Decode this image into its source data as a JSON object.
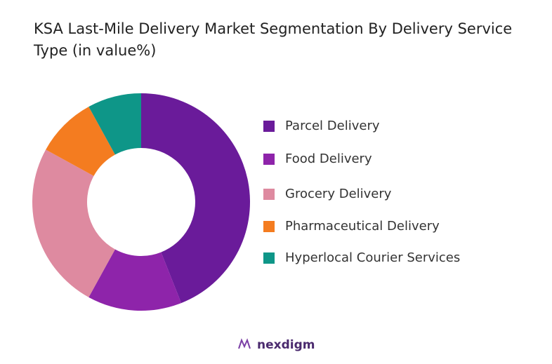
{
  "chart_data": {
    "type": "donut",
    "title": "KSA Last-Mile Delivery Market Segmentation By Delivery Service Type (in value%)",
    "categories": [
      "Parcel Delivery",
      "Food Delivery",
      "Grocery Delivery",
      "Pharmaceutical Delivery",
      "Hyperlocal Courier Services"
    ],
    "values": [
      44,
      14,
      25,
      9,
      8
    ],
    "colors": [
      "#6a1b9a",
      "#8e24aa",
      "#de8aa0",
      "#f47c20",
      "#0e9688"
    ],
    "legend": "right",
    "watermark": "nexdigm"
  }
}
